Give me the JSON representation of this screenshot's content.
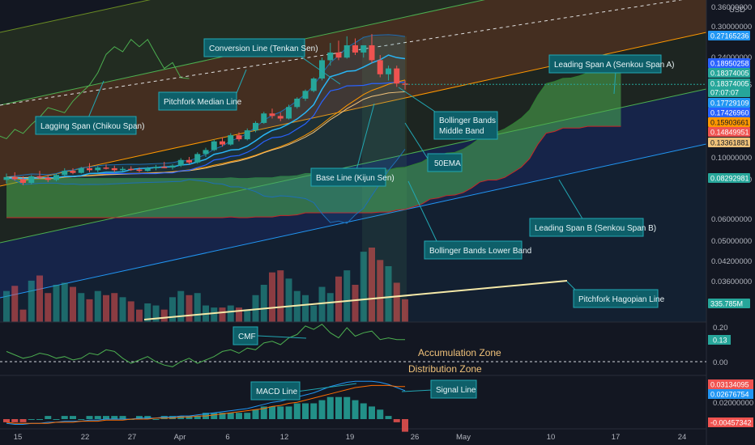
{
  "chart_data": {
    "type": "candlestick",
    "currency": "USD",
    "y_scale": "log",
    "y_ticks": [
      "0.36000000",
      "0.30000000",
      "0.24000000",
      "0.18374005",
      "0.10000000",
      "0.08000000",
      "0.06000000",
      "0.05000000",
      "0.04200000",
      "0.03600000"
    ],
    "price_tags": [
      {
        "text": "0.27165236",
        "color": "#2196f3"
      },
      {
        "text": "0.18950258",
        "color": "#2962ff"
      },
      {
        "text": "0.18374005",
        "color": "#26a69a"
      },
      {
        "text": "0.18374005",
        "color": "#26a69a"
      },
      {
        "text": "07:07:07",
        "color": "#26a69a"
      },
      {
        "text": "0.17729109",
        "color": "#2196f3"
      },
      {
        "text": "0.17426960",
        "color": "#2962ff"
      },
      {
        "text": "0.15903661",
        "color": "#ff9800"
      },
      {
        "text": "0.14849951",
        "color": "#ef5350"
      },
      {
        "text": "0.13361881",
        "color": "#f0c27a"
      },
      {
        "text": "0.08292981",
        "color": "#26a69a"
      },
      {
        "text": "335.785M",
        "color": "#26a69a"
      }
    ],
    "x_ticks": [
      "15",
      "22",
      "27",
      "Apr",
      "6",
      "12",
      "19",
      "26",
      "May",
      "10",
      "17",
      "24"
    ],
    "candles": [
      [
        0.0825,
        0.087,
        0.08,
        0.0845
      ],
      [
        0.0845,
        0.088,
        0.082,
        0.083
      ],
      [
        0.083,
        0.085,
        0.079,
        0.0805
      ],
      [
        0.0805,
        0.086,
        0.0795,
        0.085
      ],
      [
        0.085,
        0.089,
        0.083,
        0.084
      ],
      [
        0.084,
        0.086,
        0.081,
        0.0825
      ],
      [
        0.0825,
        0.087,
        0.0815,
        0.086
      ],
      [
        0.086,
        0.091,
        0.085,
        0.089
      ],
      [
        0.089,
        0.091,
        0.0865,
        0.0875
      ],
      [
        0.0875,
        0.092,
        0.087,
        0.091
      ],
      [
        0.091,
        0.095,
        0.088,
        0.0895
      ],
      [
        0.0895,
        0.0925,
        0.088,
        0.0915
      ],
      [
        0.0915,
        0.094,
        0.09,
        0.091
      ],
      [
        0.091,
        0.093,
        0.088,
        0.0895
      ],
      [
        0.0895,
        0.092,
        0.0885,
        0.0905
      ],
      [
        0.0905,
        0.0925,
        0.089,
        0.09
      ],
      [
        0.09,
        0.0915,
        0.088,
        0.089
      ],
      [
        0.089,
        0.092,
        0.0885,
        0.091
      ],
      [
        0.091,
        0.0935,
        0.0895,
        0.092
      ],
      [
        0.092,
        0.096,
        0.091,
        0.0915
      ],
      [
        0.0915,
        0.094,
        0.09,
        0.093
      ],
      [
        0.093,
        0.099,
        0.092,
        0.0975
      ],
      [
        0.0975,
        0.1,
        0.094,
        0.0955
      ],
      [
        0.0955,
        0.104,
        0.0945,
        0.1025
      ],
      [
        0.1025,
        0.108,
        0.1,
        0.106
      ],
      [
        0.106,
        0.116,
        0.105,
        0.114
      ],
      [
        0.114,
        0.118,
        0.109,
        0.111
      ],
      [
        0.111,
        0.122,
        0.11,
        0.12
      ],
      [
        0.12,
        0.123,
        0.114,
        0.116
      ],
      [
        0.116,
        0.127,
        0.115,
        0.125
      ],
      [
        0.125,
        0.135,
        0.123,
        0.133
      ],
      [
        0.133,
        0.146,
        0.132,
        0.144
      ],
      [
        0.144,
        0.15,
        0.138,
        0.141
      ],
      [
        0.141,
        0.145,
        0.135,
        0.138
      ],
      [
        0.138,
        0.155,
        0.137,
        0.152
      ],
      [
        0.152,
        0.165,
        0.15,
        0.163
      ],
      [
        0.163,
        0.176,
        0.16,
        0.174
      ],
      [
        0.174,
        0.195,
        0.172,
        0.193
      ],
      [
        0.193,
        0.23,
        0.19,
        0.225
      ],
      [
        0.225,
        0.26,
        0.215,
        0.24
      ],
      [
        0.24,
        0.265,
        0.225,
        0.23
      ],
      [
        0.23,
        0.275,
        0.228,
        0.255
      ],
      [
        0.255,
        0.27,
        0.235,
        0.24
      ],
      [
        0.24,
        0.255,
        0.23,
        0.255
      ],
      [
        0.255,
        0.28,
        0.22,
        0.225
      ],
      [
        0.225,
        0.235,
        0.195,
        0.2
      ],
      [
        0.2,
        0.215,
        0.19,
        0.21
      ],
      [
        0.21,
        0.215,
        0.18,
        0.185
      ],
      [
        0.185,
        0.19,
        0.176,
        0.1837
      ]
    ],
    "volume": [
      30,
      35,
      12,
      40,
      45,
      28,
      36,
      38,
      34,
      28,
      22,
      30,
      26,
      28,
      24,
      20,
      12,
      18,
      16,
      12,
      24,
      30,
      26,
      28,
      16,
      14,
      14,
      16,
      14,
      12,
      26,
      36,
      48,
      50,
      42,
      30,
      26,
      16,
      34,
      28,
      44,
      50,
      36,
      68,
      72,
      60,
      54,
      38,
      22
    ],
    "cmf_ticks": [
      "0.20",
      "0.13",
      "0.00"
    ],
    "cmf_values": [
      0.06,
      0.04,
      0.02,
      0.03,
      0.05,
      0.04,
      0.02,
      0.03,
      0.01,
      0.02,
      0.05,
      0.04,
      0.07,
      0.06,
      0.02,
      -0.01,
      0.01,
      0.03,
      0.0,
      -0.02,
      -0.03,
      0.0,
      0.02,
      -0.01,
      0.01,
      0.03,
      0.06,
      0.07,
      0.05,
      0.08,
      0.07,
      0.11,
      0.12,
      0.1,
      0.14,
      0.16,
      0.21,
      0.19,
      0.22,
      0.17,
      0.14,
      0.2,
      0.15,
      0.17,
      0.18,
      0.13,
      0.14,
      0.13,
      0.13
    ],
    "macd_ticks": [
      "0.03134095",
      "0.02676754",
      "0.02000000",
      "-0.00457342"
    ],
    "macd_line": [
      -0.004,
      -0.005,
      -0.005,
      -0.004,
      -0.004,
      -0.003,
      -0.003,
      -0.002,
      -0.002,
      -0.002,
      -0.001,
      -0.001,
      0.0,
      0.0,
      0.0,
      0.0,
      0.001,
      0.001,
      0.001,
      0.002,
      0.002,
      0.003,
      0.003,
      0.004,
      0.005,
      0.006,
      0.007,
      0.008,
      0.009,
      0.01,
      0.012,
      0.014,
      0.016,
      0.017,
      0.019,
      0.021,
      0.023,
      0.025,
      0.028,
      0.031,
      0.033,
      0.035,
      0.036,
      0.036,
      0.036,
      0.035,
      0.033,
      0.03,
      0.027
    ],
    "signal_line": [
      -0.003,
      -0.004,
      -0.004,
      -0.004,
      -0.004,
      -0.004,
      -0.003,
      -0.003,
      -0.003,
      -0.002,
      -0.002,
      -0.002,
      -0.001,
      -0.001,
      -0.001,
      0.0,
      0.0,
      0.0,
      0.001,
      0.001,
      0.001,
      0.002,
      0.002,
      0.003,
      0.003,
      0.004,
      0.005,
      0.006,
      0.007,
      0.008,
      0.009,
      0.01,
      0.012,
      0.013,
      0.015,
      0.016,
      0.018,
      0.02,
      0.022,
      0.024,
      0.026,
      0.028,
      0.03,
      0.031,
      0.032,
      0.032,
      0.032,
      0.031,
      0.031
    ],
    "zones": {
      "accumulation": "Accumulation Zone",
      "distribution": "Distribution Zone"
    }
  },
  "annotations": {
    "conversion": "Conversion Line (Tenkan Sen)",
    "pitchfork_median": "Pitchfork Median Line",
    "lagging": "Lagging Span (Chikou Span)",
    "leading_a": "Leading Span A (Senkou Span A)",
    "bb_middle_1": "Bollinger Bands",
    "bb_middle_2": "Middle Band",
    "ema50": "50EMA",
    "base": "Base Line (Kijun Sen)",
    "leading_b": "Leading Span B (Senkou Span B)",
    "bb_lower": "Bollinger Bands Lower Band",
    "hagopian": "Pitchfork Hagopian Line",
    "cmf": "CMF",
    "macd": "MACD Line",
    "signal": "Signal Line"
  },
  "colors": {
    "background": "#131722",
    "up": "#26a69a",
    "down": "#ef5350",
    "cloud": "#4caf50",
    "annotation_fill": "#0e5f69",
    "annotation_border": "#22a7b3"
  }
}
